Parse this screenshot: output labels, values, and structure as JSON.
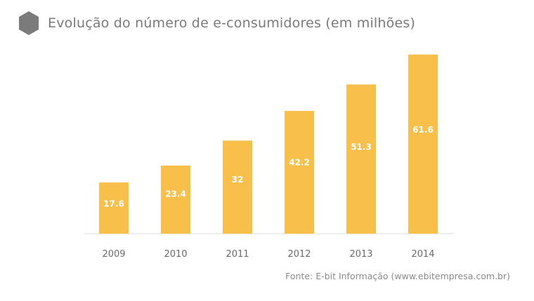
{
  "header": {
    "title": "Evolução do número de e-consumidores (em milhões)",
    "icon": "hexagon-icon",
    "icon_color": "#7b7b7b"
  },
  "chart_data": {
    "type": "bar",
    "title": "Evolução do número de e-consumidores (em milhões)",
    "categories": [
      "2009",
      "2010",
      "2011",
      "2012",
      "2013",
      "2014"
    ],
    "values": [
      17.6,
      23.4,
      32,
      42.2,
      51.3,
      61.6
    ],
    "value_labels": [
      "17.6",
      "23.4",
      "32",
      "42.2",
      "51.3",
      "61.6"
    ],
    "xlabel": "",
    "ylabel": "",
    "ylim": [
      0,
      62
    ],
    "grid": false,
    "legend": "none",
    "bar_color": "#f9bf4b",
    "label_color": "#ffffff",
    "tick_color": "#6b6b6b"
  },
  "footer": {
    "source": "Fonte: E-bit Informação (www.ebitempresa.com.br)"
  }
}
